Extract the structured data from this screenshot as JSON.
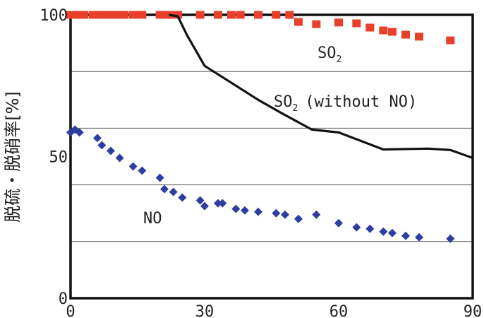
{
  "chart_data": {
    "type": "line",
    "ylabel": "脱硫・脱硝率[%]",
    "xlim": [
      0,
      90
    ],
    "ylim": [
      0,
      100
    ],
    "x_ticks": [
      "0",
      "30",
      "60",
      "90"
    ],
    "y_ticks": [
      "0",
      "50",
      "100"
    ],
    "grid": "horizontal",
    "series": [
      {
        "name": "SO2",
        "label_main": "SO",
        "label_sub": "2",
        "style": "square-markers",
        "color": "#e8402a",
        "points": [
          [
            0,
            100
          ],
          [
            1,
            100
          ],
          [
            2,
            100
          ],
          [
            3,
            100
          ],
          [
            5,
            100
          ],
          [
            6,
            100
          ],
          [
            7,
            100
          ],
          [
            8,
            100
          ],
          [
            9,
            100
          ],
          [
            10,
            100
          ],
          [
            11,
            100
          ],
          [
            12,
            100
          ],
          [
            14,
            100
          ],
          [
            15,
            100
          ],
          [
            16,
            100
          ],
          [
            20,
            100
          ],
          [
            21,
            100
          ],
          [
            22,
            100
          ],
          [
            23,
            100
          ],
          [
            24,
            100
          ],
          [
            29,
            100
          ],
          [
            33,
            100
          ],
          [
            36,
            100
          ],
          [
            38,
            100
          ],
          [
            42,
            100
          ],
          [
            46,
            100
          ],
          [
            49,
            100
          ],
          [
            51,
            97.5
          ],
          [
            55,
            96.7
          ],
          [
            60,
            97.3
          ],
          [
            64,
            97
          ],
          [
            67,
            95.5
          ],
          [
            70,
            94.5
          ],
          [
            72,
            94
          ],
          [
            75,
            93
          ],
          [
            78,
            92.3
          ],
          [
            85,
            91
          ]
        ]
      },
      {
        "name": "SO2 (without NO)",
        "label_main": "SO",
        "label_sub": "2",
        "label_rest": "(without NO)",
        "style": "line",
        "color": "#111111",
        "points": [
          [
            22,
            100
          ],
          [
            24,
            99.5
          ],
          [
            26,
            93
          ],
          [
            30,
            82
          ],
          [
            36,
            76
          ],
          [
            42,
            70
          ],
          [
            47,
            65.5
          ],
          [
            54,
            59.5
          ],
          [
            60,
            58.5
          ],
          [
            70,
            52.5
          ],
          [
            80,
            52.8
          ],
          [
            85,
            52.3
          ],
          [
            90,
            49.5
          ]
        ]
      },
      {
        "name": "NO",
        "label_main": "NO",
        "style": "diamond-markers",
        "color": "#2d3ea0",
        "points": [
          [
            0,
            58.5
          ],
          [
            1,
            59.5
          ],
          [
            2,
            58.5
          ],
          [
            6,
            56.5
          ],
          [
            7,
            54
          ],
          [
            9,
            52
          ],
          [
            11,
            49.5
          ],
          [
            14,
            46.5
          ],
          [
            16,
            45
          ],
          [
            20,
            42.5
          ],
          [
            21,
            38.5
          ],
          [
            23,
            37.5
          ],
          [
            25,
            35.5
          ],
          [
            29,
            34.5
          ],
          [
            30,
            32.5
          ],
          [
            33,
            33.5
          ],
          [
            34,
            33.5
          ],
          [
            37,
            31.5
          ],
          [
            39,
            31
          ],
          [
            42,
            30.5
          ],
          [
            46,
            30
          ],
          [
            48,
            29.5
          ],
          [
            51,
            28
          ],
          [
            55,
            29.5
          ],
          [
            60,
            26.5
          ],
          [
            64,
            25
          ],
          [
            67,
            24.5
          ],
          [
            70,
            23.5
          ],
          [
            72,
            23
          ],
          [
            75,
            22
          ],
          [
            78,
            21.5
          ],
          [
            85,
            21
          ]
        ]
      }
    ]
  }
}
